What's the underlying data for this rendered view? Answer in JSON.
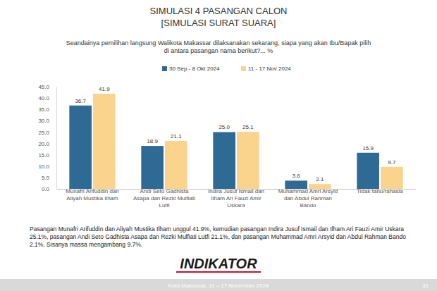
{
  "chart_data": {
    "type": "bar",
    "title": "SIMULASI 4 PASANGAN CALON",
    "subtitle": "[SIMULASI SURAT SUARA]",
    "annotations": [
      "Seandainya pemilihan langsung Walikota Makassar dilaksanakan sekarang, siapa yang akan Ibu/Bapak pilih di antara pasangan nama berikut?... %",
      "Pasangan Munafri Arifuddin dan Aliyah Mustika Ilham unggul 41.9%, kemudian pasangan Indira Jusuf Ismail dan Ilham Ari Fauzi Amir Uskara 25.1%, pasangan Andi Seto Gadhista Asapa dan Rezki Mulfiati Lutfi 21.1%, dan pasangan Muhammad Amri Arsyid dan Abdul Rahman Bando 2.1%. Sisanya massa mengambang 9.7%.",
      "INDIKATOR",
      "Kota Makassar, 11 – 17 November 2024",
      "31"
    ],
    "categories": [
      "Munafri Arifuddin dan Aliyah Mustika Ilham",
      "Andi Seto Gadhista Asapa dan Rezki Mulfiati Lutfi",
      "Indira Jusuf Ismail dan Ilham Ari Fauzi Amir Uskara",
      "Muhammad Amri Arsyid dan Abdul Rahman Bando",
      "Tidak tahu/rahasia"
    ],
    "series": [
      {
        "name": "30 Sep - 8 Okt 2024",
        "color": "#2f6a94",
        "values": [
          36.7,
          18.9,
          25.0,
          3.6,
          15.9
        ],
        "value_labels": [
          "36.7",
          "18.9",
          "25.0",
          "3.6",
          "15.9"
        ]
      },
      {
        "name": "11 - 17 Nov 2024",
        "color": "#fad48c",
        "values": [
          41.9,
          21.1,
          25.1,
          2.1,
          9.7
        ]
      }
    ],
    "ylim": [
      0,
      45
    ],
    "yticks": [
      {
        "value": 0,
        "label": "0.0"
      },
      {
        "value": 5,
        "label": "5.0"
      },
      {
        "value": 10,
        "label": "10.0"
      },
      {
        "value": 15,
        "label": "15.0"
      },
      {
        "value": 20,
        "label": "20.0"
      },
      {
        "value": 25,
        "label": "25.0"
      },
      {
        "value": 30,
        "label": "30.0"
      },
      {
        "value": 35,
        "label": "35.0"
      },
      {
        "value": 40,
        "label": "40.0"
      },
      {
        "value": 45,
        "label": "45.0"
      }
    ],
    "grid": false,
    "legend": "top",
    "data_labels": true
  }
}
